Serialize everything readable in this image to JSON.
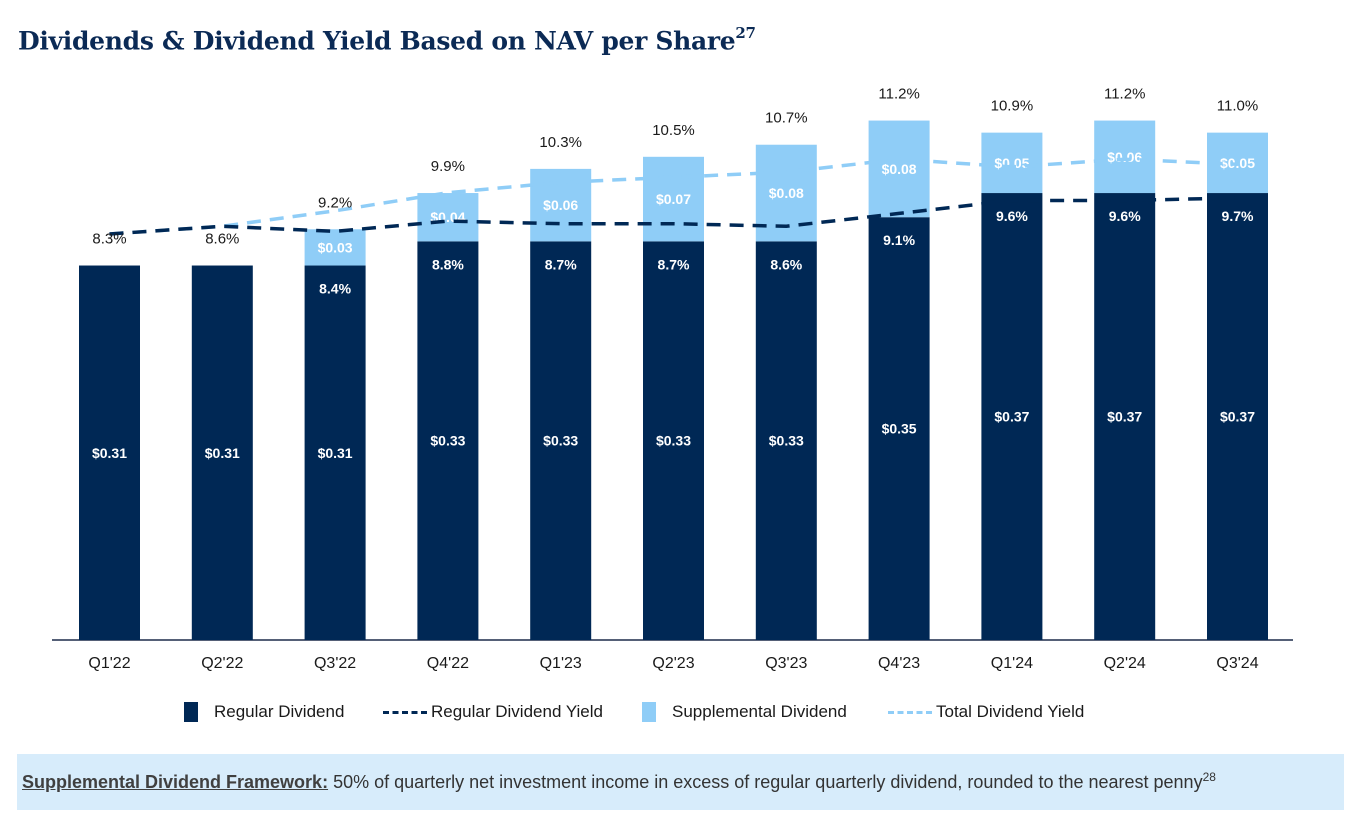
{
  "header": {
    "title": "Dividends & Dividend Yield Based on NAV per Share",
    "title_footnote": "27"
  },
  "colors": {
    "regular_dividend": "#002855",
    "supplemental_dividend": "#8fcdf7",
    "regular_yield_line": "#002855",
    "total_yield_line": "#8fcdf7",
    "title": "#0b2a55",
    "footer_bg": "#d7ecfb"
  },
  "chart_data": {
    "type": "bar",
    "stacked": true,
    "title": "Dividends & Dividend Yield Based on NAV per Share",
    "categories": [
      "Q1'22",
      "Q2'22",
      "Q3'22",
      "Q4'22",
      "Q1'23",
      "Q2'23",
      "Q3'23",
      "Q4'23",
      "Q1'24",
      "Q2'24",
      "Q3'24"
    ],
    "series": [
      {
        "name": "Regular Dividend",
        "kind": "bar",
        "values": [
          0.31,
          0.31,
          0.31,
          0.33,
          0.33,
          0.33,
          0.33,
          0.35,
          0.37,
          0.37,
          0.37
        ],
        "labels": [
          "$0.31",
          "$0.31",
          "$0.31",
          "$0.33",
          "$0.33",
          "$0.33",
          "$0.33",
          "$0.35",
          "$0.37",
          "$0.37",
          "$0.37"
        ]
      },
      {
        "name": "Supplemental Dividend",
        "kind": "bar",
        "values": [
          0,
          0,
          0.03,
          0.04,
          0.06,
          0.07,
          0.08,
          0.08,
          0.05,
          0.06,
          0.05
        ],
        "labels": [
          "",
          "",
          "$0.03",
          "$0.04",
          "$0.06",
          "$0.07",
          "$0.08",
          "$0.08",
          "$0.05",
          "$0.06",
          "$0.05"
        ]
      },
      {
        "name": "Regular Dividend Yield",
        "kind": "line",
        "style": "dashed",
        "values": [
          8.3,
          8.6,
          8.4,
          8.8,
          8.7,
          8.7,
          8.6,
          9.1,
          9.6,
          9.6,
          9.7
        ],
        "labels": [
          "",
          "",
          "8.4%",
          "8.8%",
          "8.7%",
          "8.7%",
          "8.6%",
          "9.1%",
          "9.6%",
          "9.6%",
          "9.7%"
        ]
      },
      {
        "name": "Total Dividend Yield",
        "kind": "line",
        "style": "dashed",
        "values": [
          8.3,
          8.6,
          9.2,
          9.9,
          10.3,
          10.5,
          10.7,
          11.2,
          10.9,
          11.2,
          11.0
        ],
        "labels": [
          "8.3%",
          "8.6%",
          "9.2%",
          "9.9%",
          "10.3%",
          "10.5%",
          "10.7%",
          "11.2%",
          "10.9%",
          "11.2%",
          "11.0%"
        ]
      }
    ],
    "legend": [
      "Regular Dividend",
      "Regular Dividend Yield",
      "Supplemental Dividend",
      "Total Dividend Yield"
    ],
    "legend_position": "bottom",
    "grid": false
  },
  "footer": {
    "label": "Supplemental Dividend Framework:",
    "text": " 50% of quarterly net investment income in excess of regular quarterly dividend, rounded to the nearest penny",
    "footnote": "28"
  }
}
